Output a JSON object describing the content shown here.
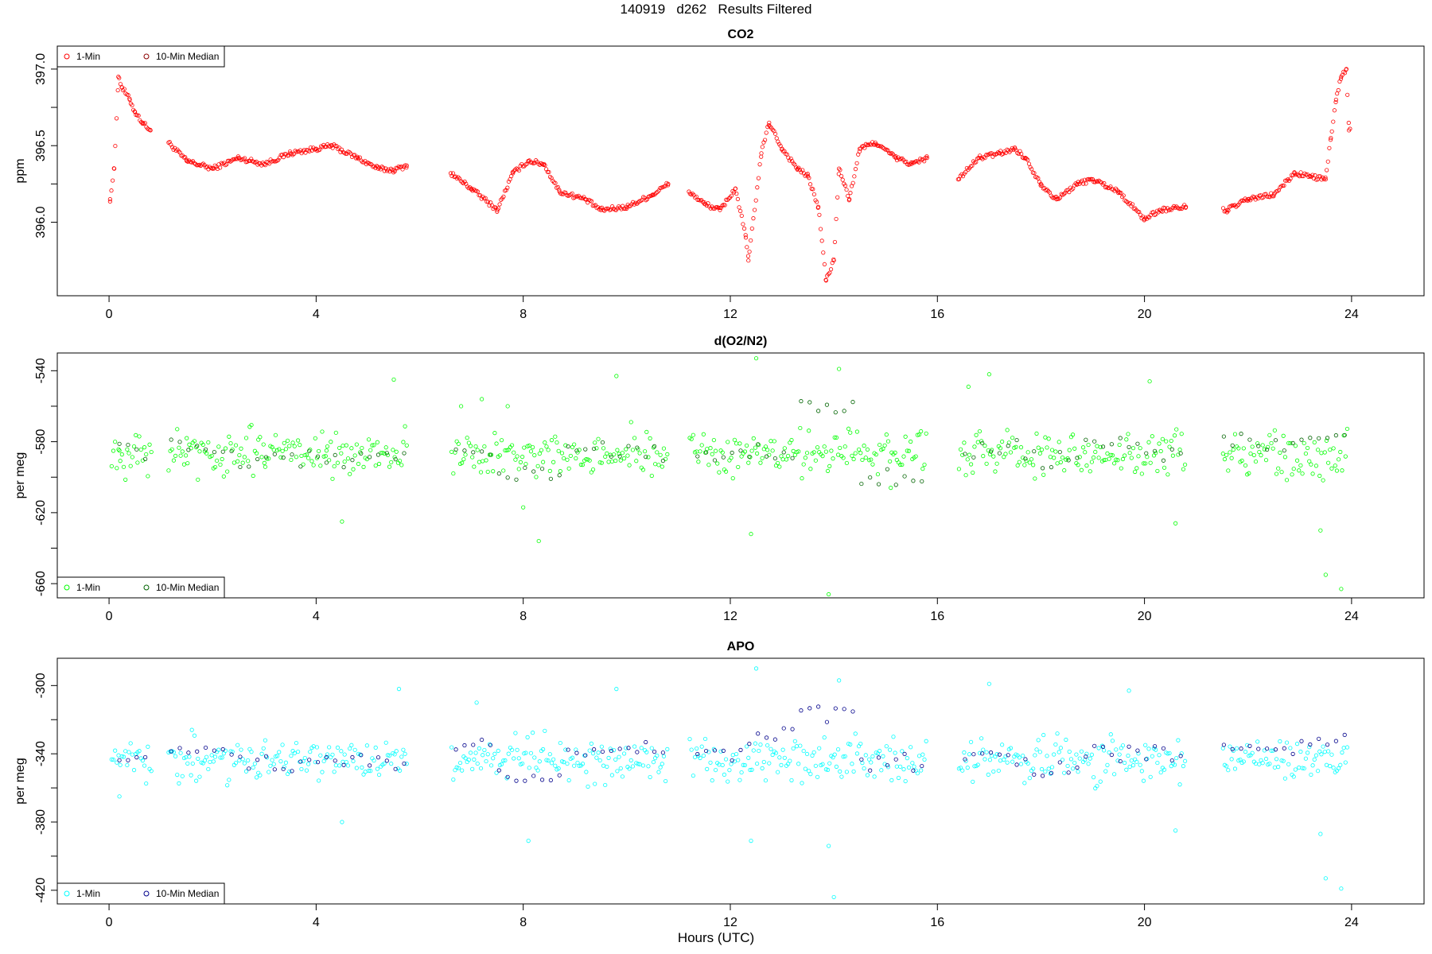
{
  "figure_title": "140919   d262   Results Filtered",
  "x_axis_title": "Hours (UTC)",
  "legend": {
    "one_min": "1-Min",
    "median": "10-Min Median"
  },
  "panels": [
    {
      "title": "CO2",
      "ylabel": "ppm",
      "xticks": [
        "0",
        "4",
        "8",
        "12",
        "16",
        "20",
        "24"
      ],
      "yticks": [
        "396.0",
        "396.5",
        "397.0"
      ]
    },
    {
      "title": "d(O2/N2)",
      "ylabel": "per meg",
      "xticks": [
        "0",
        "4",
        "8",
        "12",
        "16",
        "20",
        "24"
      ],
      "yticks": [
        "-660",
        "-620",
        "-580",
        "-540"
      ]
    },
    {
      "title": "APO",
      "ylabel": "per meg",
      "xticks": [
        "0",
        "4",
        "8",
        "12",
        "16",
        "20",
        "24"
      ],
      "yticks": [
        "-420",
        "-380",
        "-340",
        "-300"
      ]
    }
  ],
  "chart_data": [
    {
      "type": "scatter",
      "title": "CO2",
      "xlabel": "Hours (UTC)",
      "ylabel": "ppm",
      "xlim": [
        -1,
        25.4
      ],
      "ylim": [
        395.52,
        397.15
      ],
      "x_ticks": [
        0,
        4,
        8,
        12,
        16,
        20,
        24
      ],
      "y_ticks": [
        396.0,
        396.5,
        397.0
      ],
      "y_minor_ticks": [
        396.25,
        396.75
      ],
      "legend_position": "top-left",
      "colors": {
        "one_min": "#ff0000",
        "median": "#8b0000"
      },
      "data_gaps_hours": [
        [
          0.82,
          1.15
        ],
        [
          5.75,
          6.6
        ],
        [
          10.8,
          11.2
        ],
        [
          15.8,
          16.4
        ],
        [
          20.8,
          21.5
        ]
      ],
      "series": [
        {
          "name": "1-Min",
          "x": [
            0.02,
            0.1,
            0.18,
            0.25,
            0.4,
            0.5,
            0.65,
            0.8,
            1.15,
            1.5,
            2.0,
            2.5,
            3.0,
            3.5,
            4.0,
            4.3,
            4.8,
            5.2,
            5.5,
            5.75,
            6.6,
            7.0,
            7.5,
            7.8,
            8.1,
            8.4,
            8.7,
            9.2,
            9.5,
            10.0,
            10.5,
            10.8,
            11.2,
            11.5,
            11.8,
            12.1,
            12.3,
            12.35,
            12.6,
            12.75,
            13.0,
            13.3,
            13.5,
            13.7,
            13.85,
            14.0,
            14.1,
            14.3,
            14.5,
            14.8,
            15.2,
            15.5,
            15.8,
            16.4,
            16.8,
            17.2,
            17.5,
            17.7,
            18.0,
            18.3,
            18.7,
            19.0,
            19.5,
            20.0,
            20.3,
            20.8,
            21.6,
            22.0,
            22.5,
            22.9,
            23.2,
            23.5,
            23.6,
            23.7,
            23.8,
            23.9,
            23.95
          ],
          "y": [
            396.15,
            396.35,
            396.95,
            396.88,
            396.8,
            396.72,
            396.65,
            396.6,
            396.52,
            396.4,
            396.35,
            396.42,
            396.38,
            396.45,
            396.48,
            396.5,
            396.42,
            396.35,
            396.34,
            396.37,
            396.32,
            396.22,
            396.08,
            396.32,
            396.4,
            396.38,
            396.2,
            396.15,
            396.08,
            396.1,
            396.18,
            396.25,
            396.2,
            396.12,
            396.08,
            396.22,
            395.9,
            395.75,
            396.45,
            396.65,
            396.48,
            396.35,
            396.3,
            396.1,
            395.62,
            395.75,
            396.35,
            396.15,
            396.48,
            396.52,
            396.42,
            396.38,
            396.42,
            396.28,
            396.42,
            396.45,
            396.48,
            396.42,
            396.25,
            396.15,
            396.25,
            396.28,
            396.2,
            396.02,
            396.08,
            396.1,
            396.08,
            396.15,
            396.18,
            396.32,
            396.3,
            396.28,
            396.55,
            396.8,
            396.95,
            397.0,
            396.6
          ]
        },
        {
          "name": "10-Min Median",
          "x": [],
          "y": []
        }
      ]
    },
    {
      "type": "scatter",
      "title": "d(O2/N2)",
      "xlabel": "Hours (UTC)",
      "ylabel": "per meg",
      "xlim": [
        -1,
        25.4
      ],
      "ylim": [
        -668,
        -530
      ],
      "x_ticks": [
        0,
        4,
        8,
        12,
        16,
        20,
        24
      ],
      "y_ticks": [
        -660,
        -620,
        -580,
        -540
      ],
      "y_minor_ticks": [
        -640,
        -600,
        -560
      ],
      "legend_position": "bottom-left",
      "colors": {
        "one_min": "#00ff00",
        "median": "#006400"
      },
      "data_gaps_hours": [
        [
          0.82,
          1.15
        ],
        [
          5.75,
          6.6
        ],
        [
          10.8,
          11.2
        ],
        [
          15.8,
          16.4
        ],
        [
          20.8,
          21.5
        ]
      ],
      "scatter_center": -587,
      "scatter_spread": 12,
      "series": [
        {
          "name": "1-Min",
          "x": [
            0.2,
            1.5,
            3.0,
            4.2,
            4.5,
            5.5,
            6.8,
            7.2,
            7.7,
            8.0,
            8.3,
            9.8,
            12.4,
            12.5,
            13.9,
            14.1,
            15.1,
            16.6,
            17.0,
            20.1,
            20.6,
            23.4,
            23.5,
            23.8
          ],
          "y": [
            -585,
            -578,
            -592,
            -585,
            -625,
            -545,
            -560,
            -556,
            -560,
            -617,
            -636,
            -543,
            -632,
            -533,
            -666,
            -539,
            -606,
            -549,
            -542,
            -546,
            -626,
            -630,
            -655,
            -663
          ]
        },
        {
          "name": "10-Min Median",
          "x": [
            0.4,
            1.6,
            3.2,
            4.8,
            6.8,
            8.2,
            9.5,
            11.8,
            12.7,
            14.0,
            14.9,
            17.0,
            18.3,
            19.4,
            20.5,
            22.0,
            23.0,
            23.7
          ],
          "y": [
            -585,
            -582,
            -590,
            -590,
            -584,
            -598,
            -585,
            -586,
            -585,
            -560,
            -600,
            -584,
            -590,
            -582,
            -588,
            -580,
            -580,
            -574
          ]
        }
      ]
    },
    {
      "type": "scatter",
      "title": "APO",
      "xlabel": "Hours (UTC)",
      "ylabel": "per meg",
      "xlim": [
        -1,
        25.4
      ],
      "ylim": [
        -428,
        -284
      ],
      "x_ticks": [
        0,
        4,
        8,
        12,
        16,
        20,
        24
      ],
      "y_ticks": [
        -420,
        -380,
        -340,
        -300
      ],
      "y_minor_ticks": [
        -400,
        -360,
        -320
      ],
      "legend_position": "bottom-left",
      "colors": {
        "one_min": "#00ffff",
        "median": "#00008b"
      },
      "data_gaps_hours": [
        [
          0.82,
          1.15
        ],
        [
          5.75,
          6.6
        ],
        [
          10.8,
          11.2
        ],
        [
          15.8,
          16.4
        ],
        [
          20.8,
          21.5
        ]
      ],
      "scatter_center": -343,
      "scatter_spread": 12,
      "series": [
        {
          "name": "1-Min",
          "x": [
            0.2,
            1.6,
            4.5,
            5.6,
            7.1,
            8.1,
            9.8,
            12.4,
            12.5,
            13.9,
            14.0,
            14.1,
            17.0,
            19.7,
            20.6,
            23.4,
            23.5,
            23.8
          ],
          "y": [
            -365,
            -326,
            -380,
            -302,
            -310,
            -391,
            -302,
            -391,
            -290,
            -394,
            -424,
            -297,
            -299,
            -303,
            -385,
            -387,
            -413,
            -419
          ]
        },
        {
          "name": "10-Min Median",
          "x": [
            0.4,
            1.6,
            3.2,
            4.8,
            6.8,
            8.2,
            9.5,
            11.8,
            12.7,
            14.0,
            14.9,
            17.0,
            18.3,
            19.4,
            20.5,
            22.0,
            23.0,
            23.7
          ],
          "y": [
            -340,
            -338,
            -346,
            -344,
            -336,
            -352,
            -338,
            -342,
            -330,
            -317,
            -345,
            -344,
            -348,
            -340,
            -340,
            -337,
            -336,
            -330
          ]
        }
      ]
    }
  ]
}
